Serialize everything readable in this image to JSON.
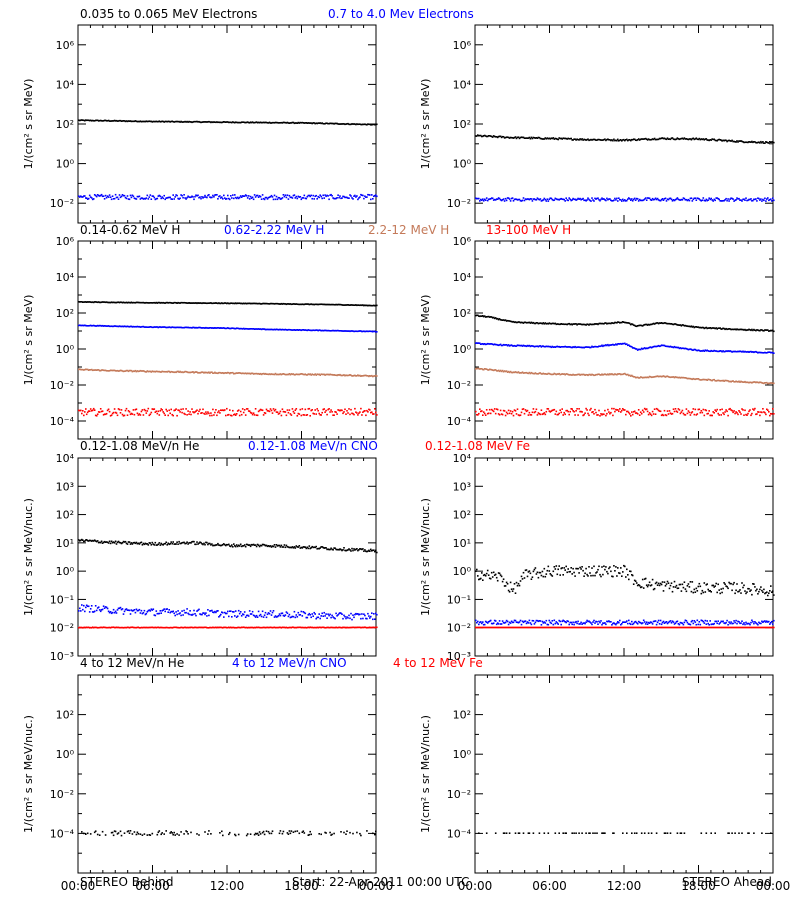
{
  "colors": {
    "black": "#000000",
    "blue": "#0000ff",
    "tan": "#c47a5a",
    "red": "#ff0000"
  },
  "rows": [
    {
      "legend": [
        {
          "text": "0.035 to 0.065 MeV Electrons",
          "color": "black"
        },
        {
          "text": "0.7 to 4.0 Mev Electrons",
          "color": "blue"
        }
      ],
      "ylabel": "1/(cm² s sr MeV)",
      "ymin_exp": -3,
      "ymax_exp": 7,
      "tick_exps": [
        -2,
        0,
        2,
        4,
        6
      ],
      "tick_labels": [
        "10⁻²",
        "10⁰",
        "10²",
        "10⁴",
        "10⁶"
      ]
    },
    {
      "legend": [
        {
          "text": "0.14-0.62 MeV H",
          "color": "black"
        },
        {
          "text": "0.62-2.22 MeV H",
          "color": "blue"
        },
        {
          "text": "2.2-12 MeV H",
          "color": "tan"
        },
        {
          "text": "13-100 MeV H",
          "color": "red"
        }
      ],
      "ylabel": "1/(cm² s sr MeV)",
      "ymin_exp": -5,
      "ymax_exp": 6,
      "tick_exps": [
        -4,
        -2,
        0,
        2,
        4,
        6
      ],
      "tick_labels": [
        "10⁻⁴",
        "10⁻²",
        "10⁰",
        "10²",
        "10⁴",
        "10⁶"
      ]
    },
    {
      "legend": [
        {
          "text": "0.12-1.08 MeV/n He",
          "color": "black"
        },
        {
          "text": "0.12-1.08 MeV/n CNO",
          "color": "blue"
        },
        {
          "text": "0.12-1.08 MeV Fe",
          "color": "red"
        }
      ],
      "ylabel": "1/(cm² s sr MeV/nuc.)",
      "ymin_exp": -3,
      "ymax_exp": 4,
      "tick_exps": [
        -3,
        -2,
        -1,
        0,
        1,
        2,
        3,
        4
      ],
      "tick_labels": [
        "10⁻³",
        "10⁻²",
        "10⁻¹",
        "10⁰",
        "10¹",
        "10²",
        "10³",
        "10⁴"
      ]
    },
    {
      "legend": [
        {
          "text": "4 to 12 MeV/n He",
          "color": "black"
        },
        {
          "text": "4 to 12 MeV/n CNO",
          "color": "blue"
        },
        {
          "text": "4 to 12 MeV Fe",
          "color": "red"
        }
      ],
      "ylabel": "1/(cm² s sr MeV/nuc.)",
      "ymin_exp": -6,
      "ymax_exp": 4,
      "tick_exps": [
        -4,
        -2,
        0,
        2
      ],
      "tick_labels": [
        "10⁻⁴",
        "10⁻²",
        "10⁰",
        "10²"
      ]
    }
  ],
  "x_tick_labels": [
    "00:00",
    "06:00",
    "12:00",
    "18:00",
    "00:00"
  ],
  "footer": {
    "left": "STEREO Behind",
    "center": "Start: 22-Apr-2011 00:00 UTC",
    "right": "STEREO Ahead"
  },
  "chart_data": [
    {
      "type": "scatter",
      "panel": "STEREO Behind",
      "ylog": true,
      "ylim": [
        0.001,
        10000000
      ],
      "x_unit": "hours since 22-Apr-2011 00:00 UTC",
      "xlim": [
        0,
        24
      ],
      "series": [
        {
          "name": "0.035 to 0.065 MeV Electrons",
          "color": "black",
          "x": [
            0,
            3,
            6,
            9,
            12,
            15,
            18,
            21,
            24
          ],
          "y": [
            150,
            140,
            130,
            125,
            120,
            115,
            110,
            100,
            90
          ],
          "jitter": 0.02
        },
        {
          "name": "0.7 to 4.0 Mev Electrons",
          "color": "blue",
          "x": [
            0,
            3,
            6,
            9,
            12,
            15,
            18,
            21,
            24
          ],
          "y": [
            0.02,
            0.02,
            0.02,
            0.02,
            0.02,
            0.02,
            0.02,
            0.02,
            0.02
          ],
          "jitter": 0.12
        }
      ]
    },
    {
      "type": "scatter",
      "panel": "STEREO Ahead",
      "ylog": true,
      "ylim": [
        0.001,
        10000000
      ],
      "x_unit": "hours since 22-Apr-2011 00:00 UTC",
      "xlim": [
        0,
        24
      ],
      "series": [
        {
          "name": "0.035 to 0.065 MeV Electrons",
          "color": "black",
          "x": [
            0,
            3,
            6,
            9,
            12,
            15,
            18,
            21,
            24
          ],
          "y": [
            25,
            20,
            18,
            16,
            15,
            18,
            17,
            13,
            11
          ],
          "jitter": 0.04
        },
        {
          "name": "0.7 to 4.0 Mev Electrons",
          "color": "blue",
          "x": [
            0,
            3,
            6,
            9,
            12,
            15,
            18,
            21,
            24
          ],
          "y": [
            0.015,
            0.015,
            0.015,
            0.015,
            0.015,
            0.015,
            0.015,
            0.015,
            0.015
          ],
          "jitter": 0.08
        }
      ]
    },
    {
      "type": "scatter",
      "panel": "STEREO Behind",
      "ylog": true,
      "ylim": [
        1e-05,
        1000000
      ],
      "x_unit": "hours since 22-Apr-2011 00:00 UTC",
      "xlim": [
        0,
        24
      ],
      "series": [
        {
          "name": "0.14-0.62 MeV H",
          "color": "black",
          "x": [
            0,
            3,
            6,
            9,
            12,
            15,
            18,
            21,
            24
          ],
          "y": [
            400,
            380,
            360,
            350,
            340,
            320,
            300,
            280,
            250
          ],
          "jitter": 0.015
        },
        {
          "name": "0.62-2.22 MeV H",
          "color": "blue",
          "x": [
            0,
            3,
            6,
            9,
            12,
            15,
            18,
            21,
            24
          ],
          "y": [
            20,
            18,
            16,
            15,
            14,
            12,
            11,
            10,
            9
          ],
          "jitter": 0.015
        },
        {
          "name": "2.2-12 MeV H",
          "color": "tan",
          "x": [
            0,
            3,
            6,
            9,
            12,
            15,
            18,
            21,
            24
          ],
          "y": [
            0.07,
            0.06,
            0.055,
            0.05,
            0.045,
            0.04,
            0.038,
            0.035,
            0.03
          ],
          "jitter": 0.03
        },
        {
          "name": "13-100 MeV H",
          "color": "red",
          "x": [
            0,
            3,
            6,
            9,
            12,
            15,
            18,
            21,
            24
          ],
          "y": [
            0.0003,
            0.0003,
            0.0003,
            0.0003,
            0.0003,
            0.0003,
            0.0003,
            0.0003,
            0.0003
          ],
          "jitter": 0.2
        }
      ]
    },
    {
      "type": "scatter",
      "panel": "STEREO Ahead",
      "ylog": true,
      "ylim": [
        1e-05,
        1000000
      ],
      "x_unit": "hours since 22-Apr-2011 00:00 UTC",
      "xlim": [
        0,
        24
      ],
      "series": [
        {
          "name": "0.14-0.62 MeV H",
          "color": "black",
          "x": [
            0,
            1,
            3,
            6,
            9,
            12,
            13,
            15,
            18,
            21,
            24
          ],
          "y": [
            70,
            60,
            30,
            25,
            22,
            30,
            18,
            28,
            15,
            12,
            10
          ],
          "jitter": 0.03
        },
        {
          "name": "0.62-2.22 MeV H",
          "color": "blue",
          "x": [
            0,
            1,
            3,
            6,
            9,
            12,
            13,
            15,
            18,
            21,
            24
          ],
          "y": [
            2.0,
            1.8,
            1.5,
            1.3,
            1.2,
            2.0,
            0.9,
            1.5,
            0.8,
            0.7,
            0.6
          ],
          "jitter": 0.03
        },
        {
          "name": "2.2-12 MeV H",
          "color": "tan",
          "x": [
            0,
            1,
            3,
            6,
            9,
            12,
            13,
            15,
            18,
            21,
            24
          ],
          "y": [
            0.08,
            0.07,
            0.05,
            0.04,
            0.035,
            0.04,
            0.025,
            0.03,
            0.02,
            0.015,
            0.012
          ],
          "jitter": 0.03
        },
        {
          "name": "13-100 MeV H",
          "color": "red",
          "x": [
            0,
            3,
            6,
            9,
            12,
            15,
            18,
            21,
            24
          ],
          "y": [
            0.0003,
            0.0003,
            0.0003,
            0.0003,
            0.0003,
            0.0003,
            0.0003,
            0.0003,
            0.0003
          ],
          "jitter": 0.2
        }
      ]
    },
    {
      "type": "scatter",
      "panel": "STEREO Behind",
      "ylog": true,
      "ylim": [
        0.001,
        10000
      ],
      "x_unit": "hours since 22-Apr-2011 00:00 UTC",
      "xlim": [
        0,
        24
      ],
      "series": [
        {
          "name": "0.12-1.08 MeV/n He",
          "color": "black",
          "x": [
            0,
            3,
            6,
            9,
            12,
            15,
            18,
            21,
            24
          ],
          "y": [
            12,
            10,
            9,
            10,
            8,
            8,
            7,
            6,
            5
          ],
          "jitter": 0.05
        },
        {
          "name": "0.12-1.08 MeV/n CNO",
          "color": "blue",
          "x": [
            0,
            3,
            6,
            9,
            12,
            15,
            18,
            21,
            24
          ],
          "y": [
            0.05,
            0.04,
            0.035,
            0.035,
            0.03,
            0.03,
            0.028,
            0.025,
            0.025
          ],
          "jitter": 0.12
        },
        {
          "name": "0.12-1.08 MeV Fe",
          "color": "red",
          "x": [
            0,
            3,
            6,
            9,
            12,
            15,
            18,
            21,
            24
          ],
          "y": [
            0.01,
            0.01,
            0.01,
            0.01,
            0.01,
            0.01,
            0.01,
            0.01,
            0.01
          ],
          "jitter": 0.01
        }
      ]
    },
    {
      "type": "scatter",
      "panel": "STEREO Ahead",
      "ylog": true,
      "ylim": [
        0.001,
        10000
      ],
      "x_unit": "hours since 22-Apr-2011 00:00 UTC",
      "xlim": [
        0,
        24
      ],
      "series": [
        {
          "name": "0.12-1.08 MeV/n He",
          "color": "black",
          "x": [
            0,
            2,
            3,
            4,
            6,
            9,
            12,
            13,
            15,
            18,
            21,
            24
          ],
          "y": [
            0.8,
            0.6,
            0.2,
            0.7,
            1.0,
            1.0,
            1.0,
            0.4,
            0.3,
            0.25,
            0.25,
            0.2
          ],
          "jitter": 0.2
        },
        {
          "name": "0.12-1.08 MeV/n CNO",
          "color": "blue",
          "x": [
            0,
            3,
            6,
            9,
            12,
            15,
            18,
            21,
            24
          ],
          "y": [
            0.015,
            0.015,
            0.015,
            0.015,
            0.015,
            0.015,
            0.015,
            0.015,
            0.015
          ],
          "jitter": 0.08
        },
        {
          "name": "0.12-1.08 MeV Fe",
          "color": "red",
          "x": [
            0,
            3,
            6,
            9,
            12,
            15,
            18,
            21,
            24
          ],
          "y": [
            0.01,
            0.01,
            0.01,
            0.01,
            0.01,
            0.01,
            0.01,
            0.01,
            0.01
          ],
          "jitter": 0.0
        }
      ]
    },
    {
      "type": "scatter",
      "panel": "STEREO Behind",
      "ylog": true,
      "ylim": [
        1e-06,
        10000
      ],
      "x_unit": "hours since 22-Apr-2011 00:00 UTC",
      "xlim": [
        0,
        24
      ],
      "series": [
        {
          "name": "4 to 12 MeV/n He",
          "color": "black",
          "x": [
            0,
            6,
            12,
            18,
            24
          ],
          "y": [
            0.0001,
            0.0001,
            0.0001,
            0.0001,
            0.0001
          ],
          "jitter": 0.12,
          "sparse": 0.45
        }
      ]
    },
    {
      "type": "scatter",
      "panel": "STEREO Ahead",
      "ylog": true,
      "ylim": [
        1e-06,
        10000
      ],
      "x_unit": "hours since 22-Apr-2011 00:00 UTC",
      "xlim": [
        0,
        24
      ],
      "series": [
        {
          "name": "4 to 12 MeV/n He",
          "color": "black",
          "x": [
            0,
            6,
            12,
            18,
            24
          ],
          "y": [
            0.0001,
            0.0001,
            0.0001,
            0.0001,
            0.0001
          ],
          "jitter": 0.0,
          "sparse": 0.2
        }
      ]
    }
  ]
}
